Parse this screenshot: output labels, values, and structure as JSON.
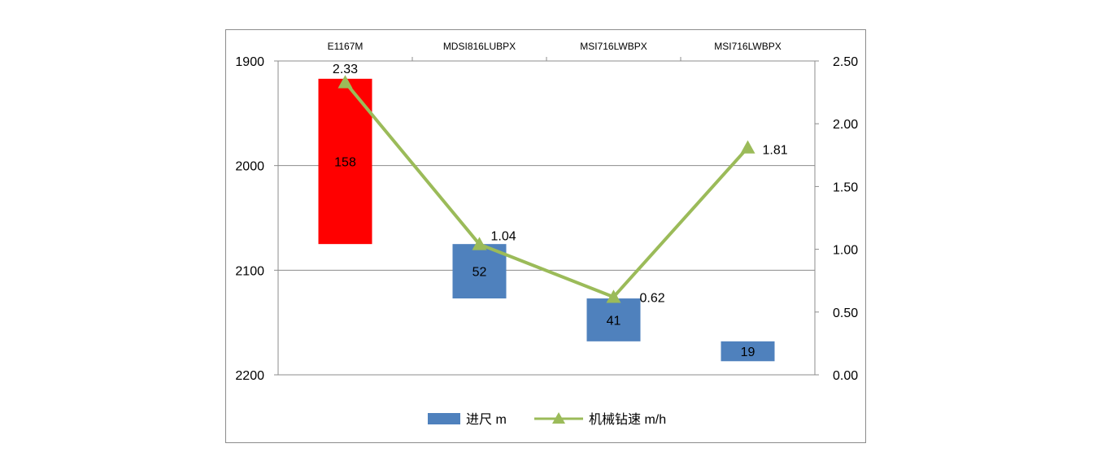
{
  "chart_data": {
    "type": "bar",
    "categories": [
      "E1167M",
      "MDSI816LUBPX",
      "MSI716LWBPX",
      "MSI716LWBPX"
    ],
    "series": [
      {
        "name": "进尺 m",
        "type": "floating-bar",
        "axis": "left",
        "color": "#4f81bd",
        "highlight_color": "#ff0000",
        "highlight_index": 0,
        "start": [
          1917,
          2075,
          2127,
          2168
        ],
        "end": [
          2075,
          2127,
          2168,
          2187
        ],
        "values": [
          158,
          52,
          41,
          19
        ]
      },
      {
        "name": "机械钻速 m/h",
        "type": "line",
        "axis": "right",
        "color": "#9bbb59",
        "marker": "triangle",
        "values": [
          2.33,
          1.04,
          0.62,
          1.81
        ],
        "labels": [
          "2.33",
          "1.04",
          "0.62",
          "1.81"
        ]
      }
    ],
    "left_axis": {
      "min": 1900,
      "max": 2200,
      "reversed": true,
      "ticks": [
        "1900",
        "2000",
        "2100",
        "2200"
      ]
    },
    "right_axis": {
      "min": 0,
      "max": 2.5,
      "ticks": [
        "0.00",
        "0.50",
        "1.00",
        "1.50",
        "2.00",
        "2.50"
      ]
    },
    "gridlines": true,
    "legend_position": "bottom"
  }
}
